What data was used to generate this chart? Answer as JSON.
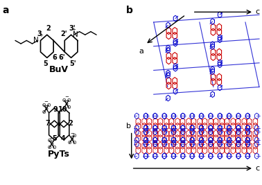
{
  "panel_a_label": "a",
  "panel_b_label": "b",
  "buv_label": "BuV",
  "pyts_label": "PyTs",
  "background_color": "#ffffff",
  "red_color": "#cc0000",
  "blue_color": "#0000cc",
  "line_color": "#000000",
  "font_size_label": 10,
  "font_size_num": 7,
  "font_size_mol_label": 9
}
